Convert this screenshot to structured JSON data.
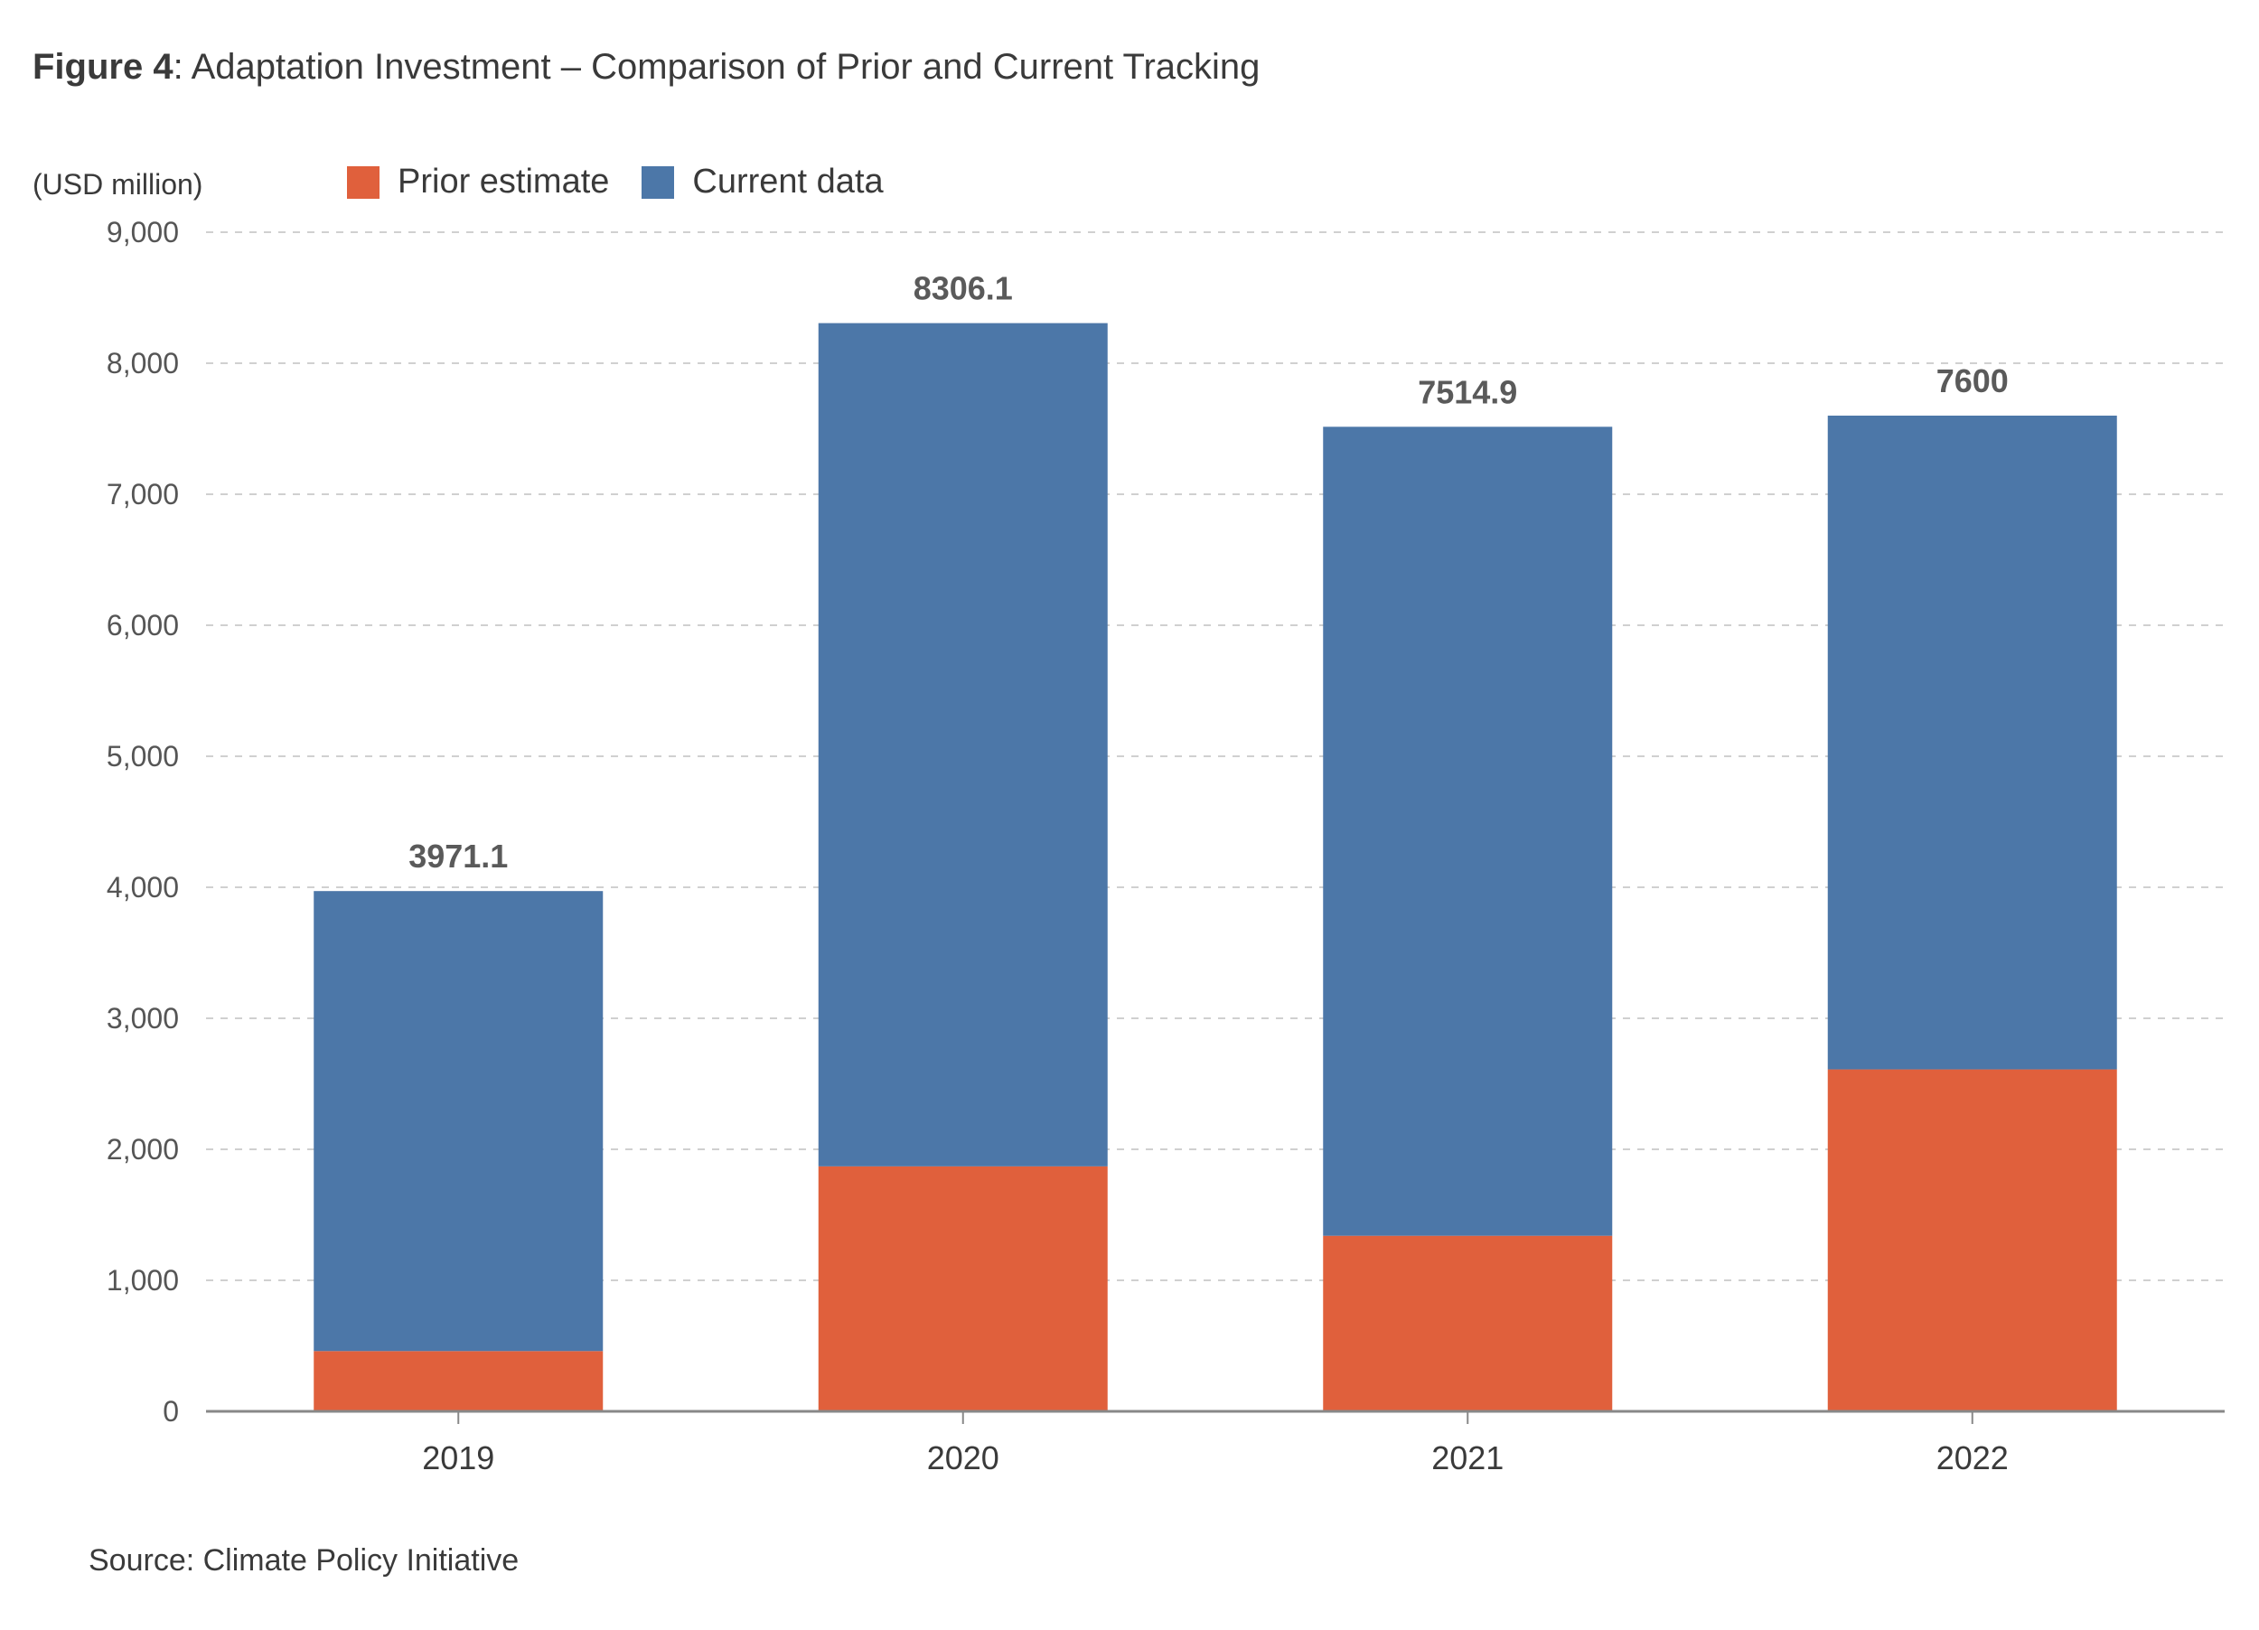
{
  "header": {
    "figure_label": "Figure 4",
    "title_rest": ": Adaptation Investment – Comparison of Prior and Current Tracking"
  },
  "unit_label": "(USD million)",
  "source": "Source: Climate Policy Initiative",
  "colors": {
    "prior": "#e0603c",
    "current": "#4c77a8",
    "axis": "#888888",
    "grid": "#d0d0d0"
  },
  "chart_data": {
    "type": "bar",
    "stacked": true,
    "categories": [
      "2019",
      "2020",
      "2021",
      "2022"
    ],
    "series": [
      {
        "name": "Prior estimate",
        "values": [
          460,
          1870,
          1340,
          2610
        ]
      },
      {
        "name": "Current data",
        "values": [
          3511.1,
          6436.1,
          6174.9,
          4990
        ]
      }
    ],
    "totals": [
      3971.1,
      8306.1,
      7514.9,
      7600
    ],
    "total_labels": [
      "3971.1",
      "8306.1",
      "7514.9",
      "7600"
    ],
    "y_ticks": [
      0,
      1000,
      2000,
      3000,
      4000,
      5000,
      6000,
      7000,
      8000,
      9000
    ],
    "y_tick_labels": [
      "0",
      "1,000",
      "2,000",
      "3,000",
      "4,000",
      "5,000",
      "6,000",
      "7,000",
      "8,000",
      "9,000"
    ],
    "ylim": [
      0,
      9000
    ],
    "ylabel": "(USD million)",
    "xlabel": "",
    "grid": true,
    "legend_position": "top-left"
  }
}
